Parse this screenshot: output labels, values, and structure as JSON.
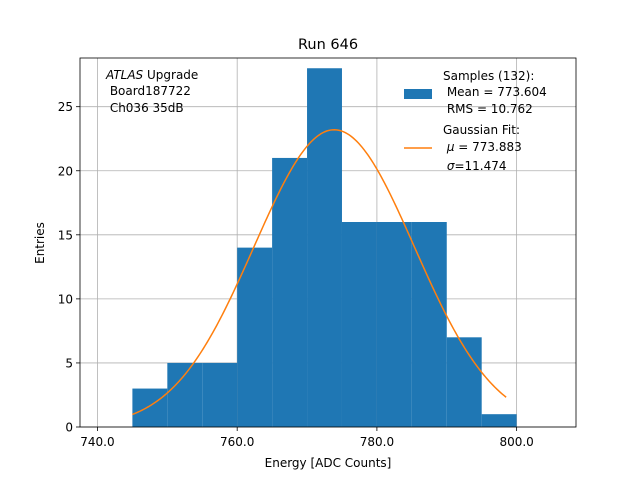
{
  "chart_data": {
    "type": "bar",
    "title": "Run 646",
    "xlabel": "Energy [ADC Counts]",
    "ylabel": "Entries",
    "xlim": [
      737.5,
      808.5
    ],
    "ylim": [
      0,
      28.8
    ],
    "grid": true,
    "legend_placement": "top-right",
    "bins": [
      {
        "x0": 745,
        "x1": 750,
        "value": 3
      },
      {
        "x0": 750,
        "x1": 755,
        "value": 5
      },
      {
        "x0": 755,
        "x1": 760,
        "value": 5
      },
      {
        "x0": 760,
        "x1": 765,
        "value": 14
      },
      {
        "x0": 765,
        "x1": 770,
        "value": 21
      },
      {
        "x0": 770,
        "x1": 775,
        "value": 28
      },
      {
        "x0": 775,
        "x1": 780,
        "value": 16
      },
      {
        "x0": 780,
        "x1": 785,
        "value": 16
      },
      {
        "x0": 785,
        "x1": 790,
        "value": 16
      },
      {
        "x0": 790,
        "x1": 795,
        "value": 7
      },
      {
        "x0": 795,
        "x1": 800,
        "value": 1
      }
    ],
    "fit": {
      "mu": 773.883,
      "sigma": 11.474,
      "amplitude": 23.2,
      "x_range": [
        745,
        798.5
      ]
    },
    "x_ticks": [
      {
        "value": 740,
        "label": "740.0"
      },
      {
        "value": 760,
        "label": "760.0"
      },
      {
        "value": 780,
        "label": "780.0"
      },
      {
        "value": 800,
        "label": "800.0"
      }
    ],
    "y_ticks": [
      {
        "value": 0,
        "label": "0"
      },
      {
        "value": 5,
        "label": "5"
      },
      {
        "value": 10,
        "label": "10"
      },
      {
        "value": 15,
        "label": "15"
      },
      {
        "value": 20,
        "label": "20"
      },
      {
        "value": 25,
        "label": "25"
      }
    ],
    "annotation": {
      "atlas": "ATLAS",
      "upgrade": " Upgrade",
      "board": " Board187722",
      "channel": " Ch036 35dB"
    },
    "legend": {
      "samples_title": "Samples (132):",
      "samples_mean": " Mean = 773.604",
      "samples_rms": " RMS = 10.762",
      "fit_title": "Gaussian Fit:",
      "fit_mu_symbol": "μ",
      "fit_mu_value": " = 773.883",
      "fit_sigma_symbol": "σ",
      "fit_sigma_value": "=11.474"
    },
    "colors": {
      "bar": "#1f77b4",
      "fit": "#ff7f0e",
      "grid": "#b0b0b0",
      "axis": "#000000"
    }
  }
}
